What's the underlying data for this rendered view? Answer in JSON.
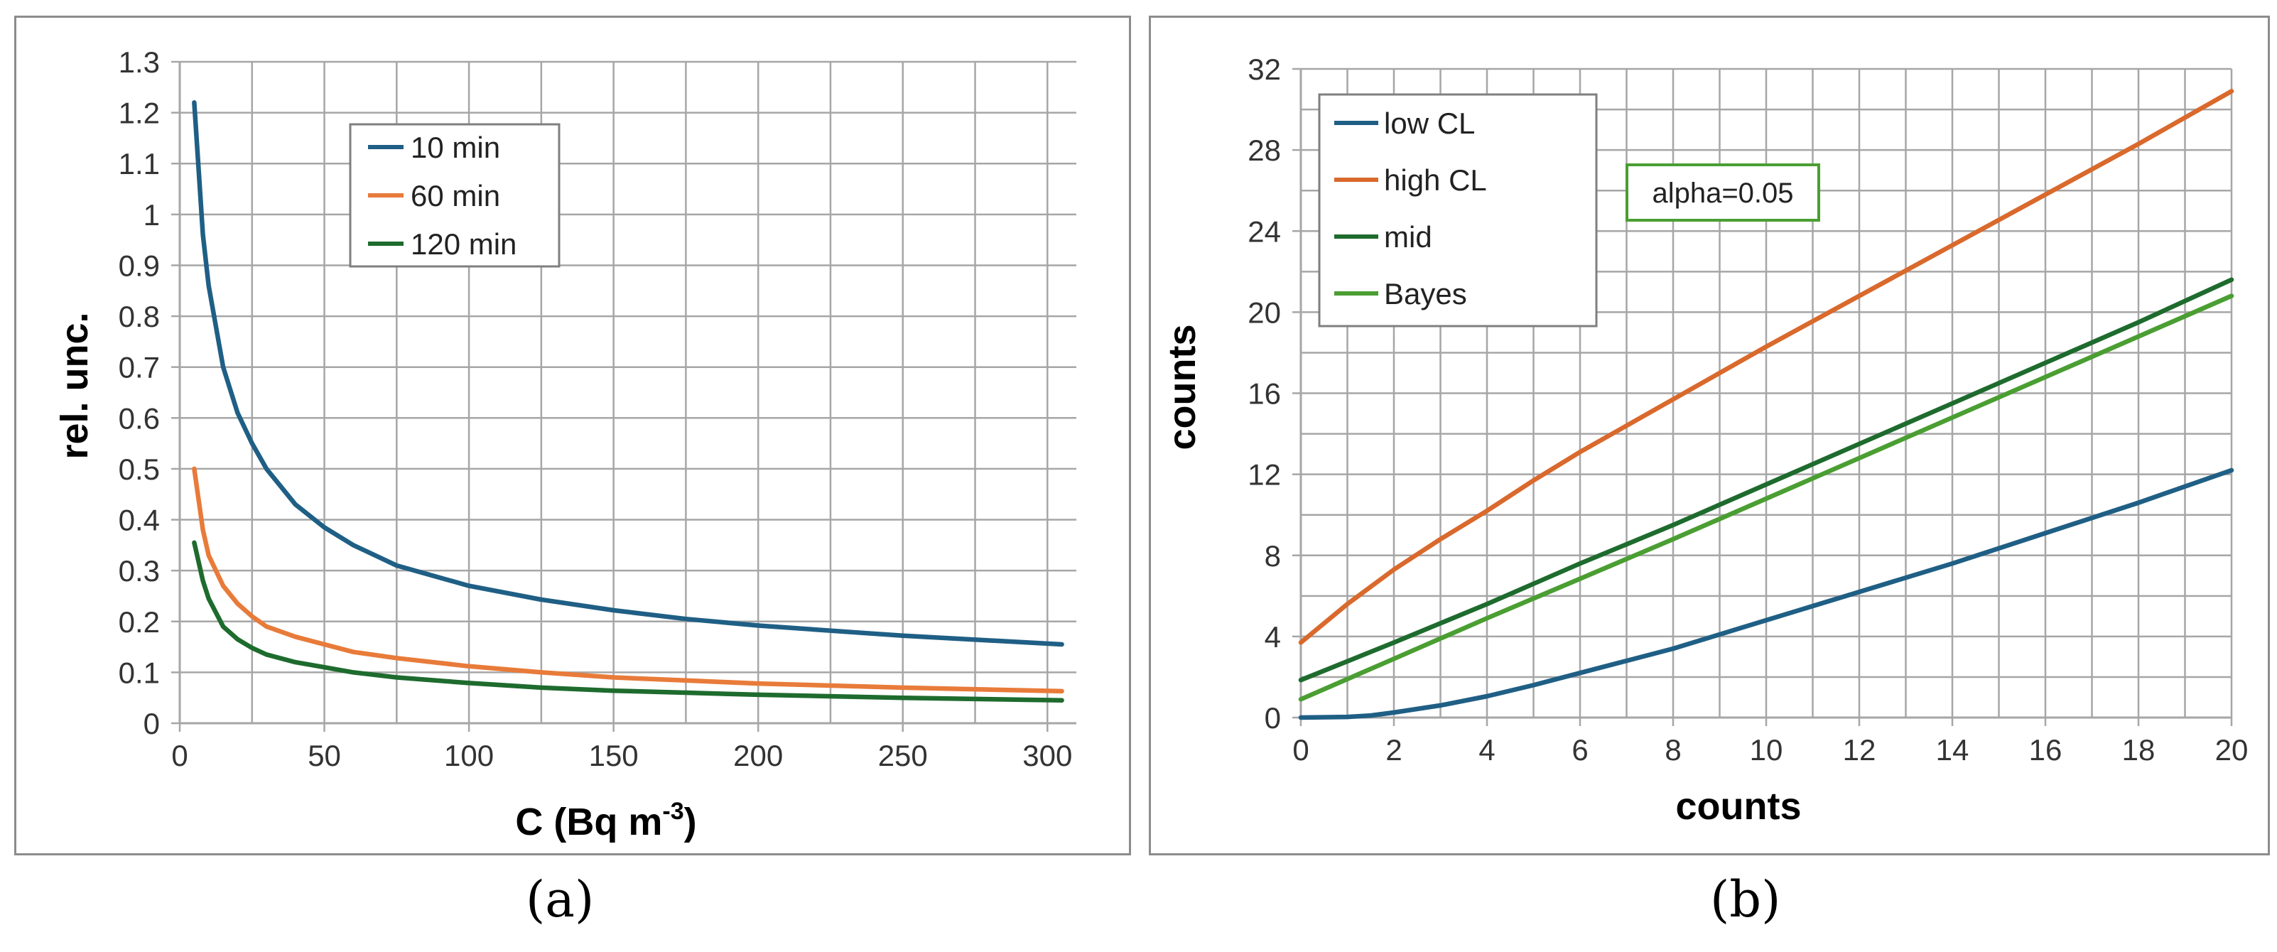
{
  "chart_data": [
    {
      "panel": "a",
      "type": "line",
      "xlabel": "C (Bq m",
      "xlabel_sup": "-3",
      "xlabel_close": ")",
      "ylabel": "rel. unc.",
      "xlim": [
        0,
        310
      ],
      "ylim": [
        0,
        1.3
      ],
      "xticks": [
        0,
        50,
        100,
        150,
        200,
        250,
        300
      ],
      "yticks": [
        0,
        0.1,
        0.2,
        0.3,
        0.4,
        0.5,
        0.6,
        0.7,
        0.8,
        0.9,
        1,
        1.1,
        1.2,
        1.3
      ],
      "xtick_labels": [
        "0",
        "50",
        "100",
        "150",
        "200",
        "250",
        "300"
      ],
      "ytick_labels": [
        "0",
        "0.1",
        "0.2",
        "0.3",
        "0.4",
        "0.5",
        "0.6",
        "0.7",
        "0.8",
        "0.9",
        "1",
        "1.1",
        "1.2",
        "1.3"
      ],
      "x_grid": [
        25,
        50,
        75,
        100,
        125,
        150,
        175,
        200,
        225,
        250,
        275,
        300
      ],
      "grid": true,
      "legend_position": "top-center",
      "series": [
        {
          "name": "10 min",
          "color": "#1f5f85",
          "x": [
            5,
            8,
            10,
            15,
            20,
            25,
            30,
            40,
            50,
            60,
            75,
            100,
            125,
            150,
            175,
            200,
            250,
            305
          ],
          "y": [
            1.22,
            0.96,
            0.86,
            0.7,
            0.61,
            0.55,
            0.5,
            0.43,
            0.385,
            0.35,
            0.31,
            0.27,
            0.243,
            0.222,
            0.205,
            0.192,
            0.172,
            0.155
          ]
        },
        {
          "name": "60 min",
          "color": "#e87b3a",
          "x": [
            5,
            8,
            10,
            15,
            20,
            25,
            30,
            40,
            50,
            60,
            75,
            100,
            125,
            150,
            175,
            200,
            250,
            305
          ],
          "y": [
            0.5,
            0.38,
            0.33,
            0.27,
            0.235,
            0.21,
            0.19,
            0.17,
            0.155,
            0.14,
            0.128,
            0.112,
            0.1,
            0.09,
            0.084,
            0.078,
            0.07,
            0.063
          ]
        },
        {
          "name": "120 min",
          "color": "#1e6b2e",
          "x": [
            5,
            8,
            10,
            15,
            20,
            25,
            30,
            40,
            50,
            60,
            75,
            100,
            125,
            150,
            175,
            200,
            250,
            305
          ],
          "y": [
            0.355,
            0.28,
            0.245,
            0.19,
            0.165,
            0.148,
            0.135,
            0.12,
            0.11,
            0.1,
            0.09,
            0.079,
            0.07,
            0.064,
            0.06,
            0.056,
            0.05,
            0.045
          ]
        }
      ]
    },
    {
      "panel": "b",
      "type": "line",
      "xlabel": "counts",
      "ylabel": "counts",
      "xlim": [
        0,
        20
      ],
      "ylim": [
        0,
        32
      ],
      "xticks": [
        0,
        2,
        4,
        6,
        8,
        10,
        12,
        14,
        16,
        18,
        20
      ],
      "yticks": [
        0,
        4,
        8,
        12,
        16,
        20,
        24,
        28,
        32
      ],
      "xtick_labels": [
        "0",
        "2",
        "4",
        "6",
        "8",
        "10",
        "12",
        "14",
        "16",
        "18",
        "20"
      ],
      "ytick_labels": [
        "0",
        "4",
        "8",
        "12",
        "16",
        "20",
        "24",
        "28",
        "32"
      ],
      "x_grid": [
        1,
        2,
        3,
        4,
        5,
        6,
        7,
        8,
        9,
        10,
        11,
        12,
        13,
        14,
        15,
        16,
        17,
        18,
        19,
        20
      ],
      "y_grid": [
        2,
        4,
        6,
        8,
        10,
        12,
        14,
        16,
        18,
        20,
        22,
        24,
        26,
        28,
        30,
        32
      ],
      "grid": true,
      "legend_position": "top-left",
      "annotation": "alpha=0.05",
      "series": [
        {
          "name": "low CL",
          "color": "#1f5f85",
          "x": [
            0,
            1,
            1.5,
            2,
            3,
            4,
            5,
            6,
            7,
            8,
            10,
            12,
            14,
            16,
            18,
            20
          ],
          "y": [
            0,
            0.03,
            0.1,
            0.25,
            0.6,
            1.05,
            1.6,
            2.2,
            2.8,
            3.4,
            4.8,
            6.2,
            7.6,
            9.1,
            10.6,
            12.2
          ]
        },
        {
          "name": "high CL",
          "color": "#d9692c",
          "x": [
            0,
            1,
            2,
            3,
            4,
            5,
            6,
            8,
            10,
            12,
            14,
            16,
            18,
            20
          ],
          "y": [
            3.7,
            5.6,
            7.3,
            8.8,
            10.2,
            11.7,
            13.1,
            15.7,
            18.3,
            20.8,
            23.3,
            25.8,
            28.3,
            30.9
          ]
        },
        {
          "name": "mid",
          "color": "#1e6b2e",
          "x": [
            0,
            2,
            4,
            6,
            8,
            10,
            12,
            14,
            16,
            18,
            20
          ],
          "y": [
            1.85,
            3.7,
            5.6,
            7.6,
            9.5,
            11.5,
            13.5,
            15.5,
            17.5,
            19.5,
            21.6
          ]
        },
        {
          "name": "Bayes",
          "color": "#4a9e32",
          "x": [
            0,
            2,
            4,
            6,
            8,
            10,
            12,
            14,
            16,
            18,
            20
          ],
          "y": [
            0.9,
            2.9,
            4.9,
            6.85,
            8.8,
            10.8,
            12.8,
            14.8,
            16.8,
            18.8,
            20.8
          ]
        }
      ]
    }
  ],
  "captions": {
    "a": "(a)",
    "b": "(b)"
  }
}
